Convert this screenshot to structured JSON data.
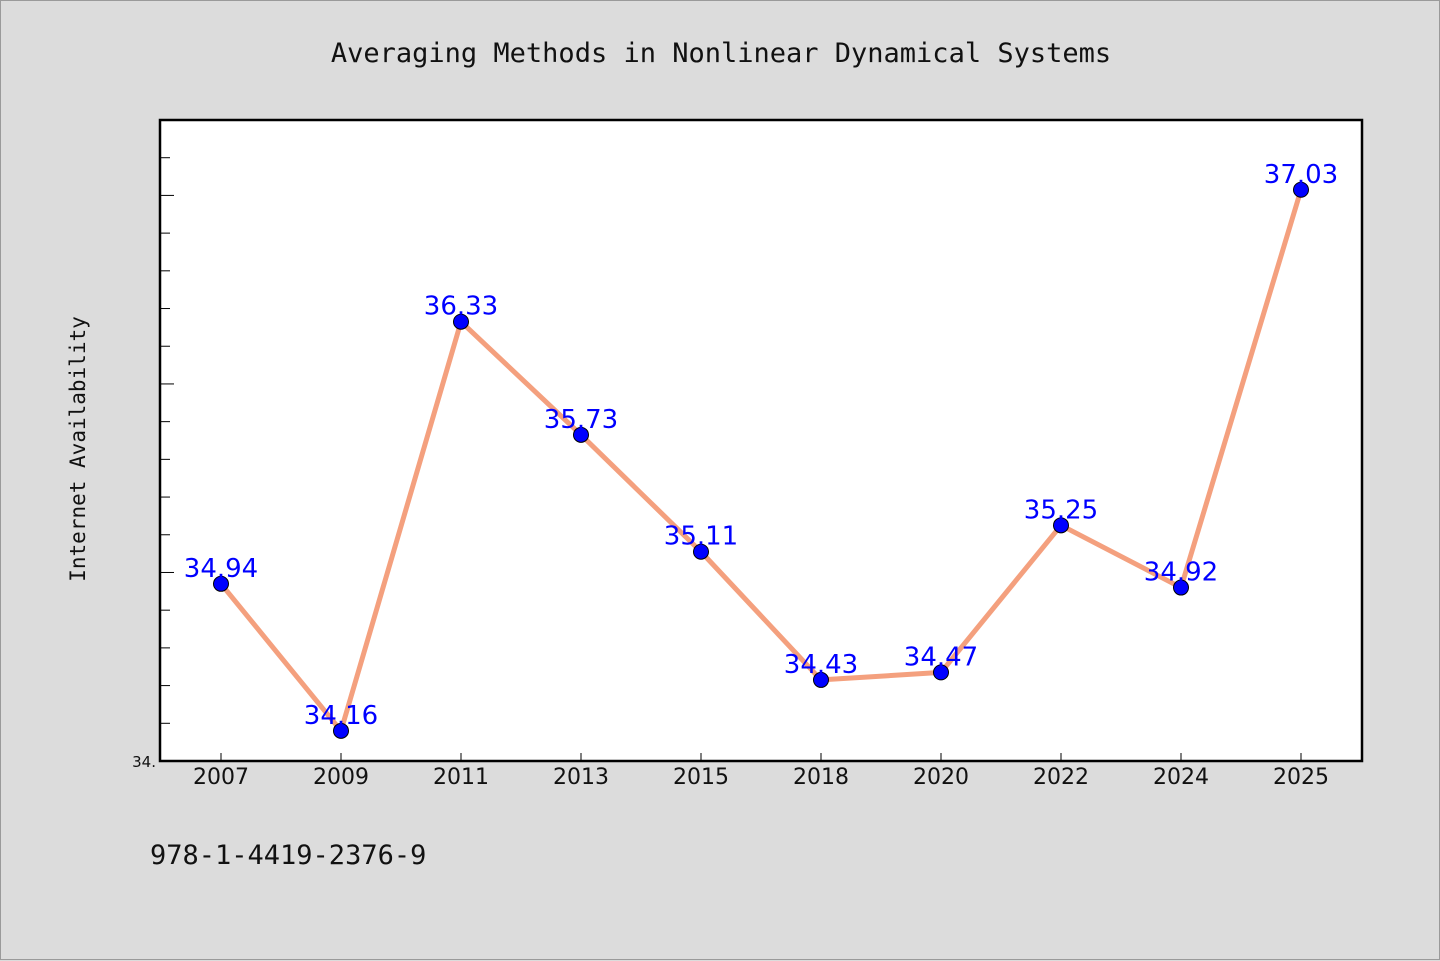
{
  "chart_data": {
    "type": "line",
    "title": "Averaging Methods in Nonlinear Dynamical Systems",
    "xlabel": "",
    "ylabel": "Internet Availability",
    "categories": [
      "2007",
      "2009",
      "2011",
      "2013",
      "2015",
      "2018",
      "2020",
      "2022",
      "2024",
      "2025"
    ],
    "values": [
      34.94,
      34.16,
      36.33,
      35.73,
      35.11,
      34.43,
      34.47,
      35.25,
      34.92,
      37.03
    ],
    "data_labels": [
      "34.94",
      "34.16",
      "36.33",
      "35.73",
      "35.11",
      "34.43",
      "34.47",
      "35.25",
      "34.92",
      "37.03"
    ],
    "ytick_labels": [
      "34."
    ],
    "ylim": [
      34.0,
      37.4
    ],
    "grid": false,
    "line_color": "#f4a07e",
    "marker_color": "#0000ff",
    "label_color": "#0000ff"
  },
  "footer": {
    "isbn": "978-1-4419-2376-9"
  }
}
